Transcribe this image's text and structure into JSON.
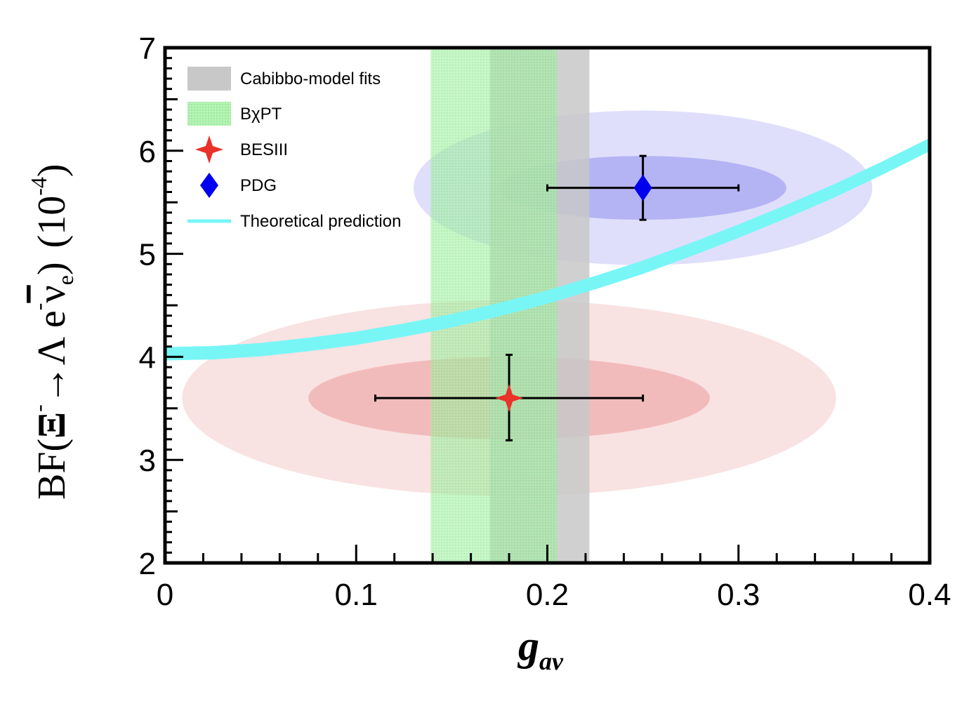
{
  "chart_data": {
    "type": "scatter",
    "xlabel": "g",
    "xlabel_sub": "av",
    "ylabel_parts": {
      "prefix": "BF(",
      "xi": "Ξ",
      "xi_sup": "-",
      "arrow": "→Λ e",
      "e_sup": "-",
      "nu": "ν",
      "nu_sub": "e",
      "close": ")",
      "unit": "(10",
      "unit_sup": "-4",
      "unit_close": ")"
    },
    "xlim": [
      0,
      0.4
    ],
    "ylim": [
      2,
      7
    ],
    "xticks": [
      "0",
      "0.1",
      "0.2",
      "0.3",
      "0.4"
    ],
    "yticks": [
      "2",
      "3",
      "4",
      "5",
      "6",
      "7"
    ],
    "legend": [
      {
        "label": "Cabibbo-model fits",
        "kind": "box",
        "color": "#c8c8c8"
      },
      {
        "label": "BχPT",
        "kind": "hatched",
        "color": "#90ee90"
      },
      {
        "label": "BESIII",
        "kind": "star",
        "color": "#e8322a"
      },
      {
        "label": "PDG",
        "kind": "diamond",
        "color": "#0000ee"
      },
      {
        "label": "Theoretical prediction",
        "kind": "line",
        "color": "#78f6f6"
      }
    ],
    "bands": [
      {
        "name": "Cabibbo-model fits",
        "x": [
          0.17,
          0.222
        ],
        "color": "#c8c8c8"
      },
      {
        "name": "BχPT",
        "x": [
          0.139,
          0.205
        ],
        "color": "#90ee90"
      }
    ],
    "points": [
      {
        "name": "BESIII",
        "x": 0.18,
        "y": 3.6,
        "xerr": [
          0.07,
          0.07
        ],
        "yerr": [
          0.41,
          0.42
        ],
        "marker": "star",
        "color": "#e8322a",
        "ellipse_inner": {
          "rx": 0.105,
          "ry": 0.4
        },
        "ellipse_outer": {
          "rx": 0.171,
          "ry": 0.95
        },
        "ellipse_color": "#e88c8c"
      },
      {
        "name": "PDG",
        "x": 0.25,
        "y": 5.64,
        "xerr": [
          0.05,
          0.05
        ],
        "yerr": [
          0.31,
          0.31
        ],
        "marker": "diamond",
        "color": "#0000ee",
        "ellipse_inner": {
          "rx": 0.075,
          "ry": 0.31
        },
        "ellipse_outer": {
          "rx": 0.12,
          "ry": 0.75
        },
        "ellipse_color": "#8080ee"
      }
    ],
    "theory_curve": {
      "name": "Theoretical prediction",
      "color": "#78f6f6",
      "x": [
        0,
        0.025,
        0.05,
        0.075,
        0.1,
        0.125,
        0.15,
        0.175,
        0.2,
        0.225,
        0.25,
        0.275,
        0.3,
        0.325,
        0.35,
        0.375,
        0.4
      ],
      "y": [
        4.03,
        4.04,
        4.07,
        4.12,
        4.18,
        4.26,
        4.35,
        4.46,
        4.58,
        4.72,
        4.87,
        5.04,
        5.22,
        5.41,
        5.61,
        5.83,
        6.06
      ],
      "width": 0.13
    },
    "grid": false
  }
}
